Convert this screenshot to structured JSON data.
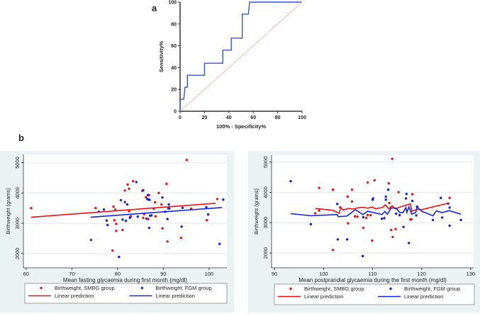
{
  "chart_data": [
    {
      "panel_label": "a",
      "type": "line",
      "title": "",
      "xlabel": "100% - Specificity%",
      "ylabel": "Sensitivity%",
      "xlim": [
        0,
        100
      ],
      "ylim": [
        0,
        100
      ],
      "xticks": [
        0,
        20,
        40,
        60,
        80,
        100
      ],
      "yticks": [
        0,
        20,
        40,
        60,
        80,
        100
      ],
      "grid": false,
      "series": [
        {
          "name": "ROC curve",
          "color": "#3355dd",
          "step": true,
          "points": [
            [
              0,
              0
            ],
            [
              0,
              11
            ],
            [
              3,
              11
            ],
            [
              4,
              22
            ],
            [
              6,
              22
            ],
            [
              6,
              33
            ],
            [
              20,
              33
            ],
            [
              20,
              44
            ],
            [
              35,
              44
            ],
            [
              35,
              56
            ],
            [
              42,
              56
            ],
            [
              42,
              67
            ],
            [
              51,
              67
            ],
            [
              51,
              89
            ],
            [
              56,
              89
            ],
            [
              57,
              100
            ],
            [
              100,
              100
            ]
          ]
        },
        {
          "name": "Reference line",
          "color": "#f4a6a0",
          "points": [
            [
              0,
              0
            ],
            [
              100,
              100
            ]
          ]
        }
      ]
    },
    {
      "panel_label": "b",
      "type": "scatter",
      "xlabel": "Mean fasting glycaemia during first month (mg/dl)",
      "ylabel": "Birthweight (grams)",
      "xlim": [
        59.4,
        103.9
      ],
      "ylim": [
        1530,
        5270
      ],
      "xticks": [
        60,
        70,
        80,
        90,
        100
      ],
      "yticks": [
        2000,
        3000,
        4000,
        5000
      ],
      "grid": true,
      "legend": [
        "Birthweight, SMBG group",
        "Birthweight, FGM group",
        "Linear prediction",
        "Linear prediction"
      ],
      "legend_position": "bottom",
      "series": [
        {
          "name": "Birthweight, SMBG group",
          "kind": "points",
          "color": "#ee1111",
          "points": [
            [
              61.1,
              3500
            ],
            [
              75.2,
              3500
            ],
            [
              79.1,
              3550
            ],
            [
              79.5,
              3450
            ],
            [
              82.5,
              3400
            ],
            [
              79.3,
              3100
            ],
            [
              79.7,
              2980
            ],
            [
              79.7,
              2750
            ],
            [
              81.1,
              2780
            ],
            [
              78.9,
              2100
            ],
            [
              81.6,
              4080
            ],
            [
              82.2,
              4280
            ],
            [
              82.5,
              4140
            ],
            [
              83.4,
              4390
            ],
            [
              82.9,
              3230
            ],
            [
              82.7,
              3200
            ],
            [
              85.4,
              4070
            ],
            [
              85.6,
              3180
            ],
            [
              85.8,
              3300
            ],
            [
              86.2,
              3860
            ],
            [
              86.9,
              3930
            ],
            [
              86.7,
              3140
            ],
            [
              87.9,
              3480
            ],
            [
              88.2,
              3690
            ],
            [
              88.3,
              3230
            ],
            [
              89.0,
              4000
            ],
            [
              89.6,
              3620
            ],
            [
              89.8,
              2830
            ],
            [
              90.7,
              4300
            ],
            [
              90.9,
              2400
            ],
            [
              93.9,
              2520
            ],
            [
              95.1,
              5090
            ],
            [
              96.1,
              3480
            ],
            [
              99.5,
              3100
            ],
            [
              101.8,
              3800
            ]
          ]
        },
        {
          "name": "Birthweight, FGM group",
          "kind": "points",
          "color": "#1122ee",
          "points": [
            [
              74.2,
              2450
            ],
            [
              75.9,
              3380
            ],
            [
              77.0,
              3450
            ],
            [
              77.6,
              3090
            ],
            [
              77.8,
              2940
            ],
            [
              80.3,
              1890
            ],
            [
              80.7,
              3760
            ],
            [
              81.1,
              3120
            ],
            [
              81.6,
              3700
            ],
            [
              81.8,
              3080
            ],
            [
              82.1,
              3620
            ],
            [
              82.7,
              3180
            ],
            [
              84.1,
              4360
            ],
            [
              84.4,
              3220
            ],
            [
              85.6,
              4090
            ],
            [
              86.3,
              3150
            ],
            [
              86.6,
              3930
            ],
            [
              86.5,
              3800
            ],
            [
              86.7,
              3790
            ],
            [
              87.0,
              3770
            ],
            [
              86.9,
              2850
            ],
            [
              87.1,
              3250
            ],
            [
              87.4,
              3260
            ],
            [
              89.8,
              3850
            ],
            [
              90.4,
              3380
            ],
            [
              90.9,
              3140
            ],
            [
              91.1,
              3490
            ],
            [
              91.2,
              3620
            ],
            [
              91.3,
              3490
            ],
            [
              94.0,
              2890
            ],
            [
              94.2,
              3510
            ],
            [
              99.4,
              3530
            ],
            [
              99.8,
              3290
            ],
            [
              102.3,
              2320
            ],
            [
              103.1,
              3780
            ]
          ]
        },
        {
          "name": "Linear prediction",
          "kind": "line",
          "color": "#ee1111",
          "points": [
            [
              61.1,
              3200
            ],
            [
              101.4,
              3660
            ]
          ]
        },
        {
          "name": "Linear prediction",
          "kind": "line",
          "color": "#1122ee",
          "points": [
            [
              74.1,
              3200
            ],
            [
              102.8,
              3520
            ]
          ]
        }
      ]
    },
    {
      "type": "scatter",
      "xlabel": "Mean postprandial glycaemia during the first month (mg/dl)",
      "ylabel": "Birthweight (grams)",
      "xlim": [
        89.4,
        130.6
      ],
      "ylim": [
        1510,
        5230
      ],
      "xticks": [
        90,
        100,
        110,
        120,
        130
      ],
      "yticks": [
        2000,
        3000,
        4000,
        5000
      ],
      "grid": true,
      "legend": [
        "Birthweight, SMBG group",
        "Birthweight, FGM group",
        "Linear prediction",
        "Linear prediction"
      ],
      "legend_position": "bottom",
      "series": [
        {
          "name": "Birthweight, SMBG group",
          "kind": "points",
          "color": "#ee1111",
          "points": [
            [
              98.3,
              3310
            ],
            [
              99.1,
              4150
            ],
            [
              99.1,
              3400
            ],
            [
              101.9,
              4090
            ],
            [
              101.9,
              2100
            ],
            [
              103.4,
              3510
            ],
            [
              104.9,
              3860
            ],
            [
              105.0,
              2980
            ],
            [
              105.8,
              4090
            ],
            [
              105.8,
              3700
            ],
            [
              106.4,
              3210
            ],
            [
              106.9,
              3200
            ],
            [
              108.1,
              2830
            ],
            [
              108.7,
              3160
            ],
            [
              109.0,
              4330
            ],
            [
              109.0,
              3250
            ],
            [
              109.6,
              3250
            ],
            [
              109.9,
              2410
            ],
            [
              110.4,
              4400
            ],
            [
              113.3,
              4300
            ],
            [
              113.4,
              3650
            ],
            [
              114.0,
              5110
            ],
            [
              113.8,
              2760
            ],
            [
              114.1,
              2530
            ],
            [
              114.7,
              2790
            ],
            [
              115.3,
              4010
            ],
            [
              117.7,
              3110
            ],
            [
              117.9,
              3110
            ],
            [
              118.1,
              3940
            ],
            [
              119.1,
              3520
            ],
            [
              125.7,
              3820
            ]
          ]
        },
        {
          "name": "Birthweight, FGM group",
          "kind": "points",
          "color": "#1122ee",
          "points": [
            [
              93.3,
              4370
            ],
            [
              97.4,
              2950
            ],
            [
              102.8,
              3620
            ],
            [
              102.9,
              2450
            ],
            [
              104.8,
              2450
            ],
            [
              108.1,
              3180
            ],
            [
              108.0,
              1900
            ],
            [
              110.0,
              3760
            ],
            [
              110.1,
              3800
            ],
            [
              111.9,
              3130
            ],
            [
              112.4,
              3150
            ],
            [
              112.7,
              3860
            ],
            [
              112.7,
              3760
            ],
            [
              113.2,
              4090
            ],
            [
              114.8,
              3300
            ],
            [
              115.5,
              3250
            ],
            [
              116.3,
              2860
            ],
            [
              116.8,
              3800
            ],
            [
              116.9,
              3950
            ],
            [
              117.4,
              2330
            ],
            [
              118.1,
              3720
            ],
            [
              118.9,
              3240
            ],
            [
              119.1,
              3530
            ],
            [
              122.3,
              3090
            ],
            [
              123.9,
              3820
            ],
            [
              124.2,
              3170
            ],
            [
              125.4,
              3630
            ],
            [
              125.7,
              3500
            ],
            [
              125.7,
              2900
            ],
            [
              128.0,
              3090
            ]
          ]
        },
        {
          "name": "Linear prediction",
          "kind": "line",
          "color": "#ee1111",
          "points": [
            [
              98.3,
              3470
            ],
            [
              101.9,
              3410
            ],
            [
              103.2,
              3310
            ],
            [
              103.5,
              3510
            ],
            [
              104,
              3420
            ],
            [
              105,
              3470
            ],
            [
              106,
              3450
            ],
            [
              107,
              3490
            ],
            [
              108,
              3510
            ],
            [
              109,
              3480
            ],
            [
              110,
              3520
            ],
            [
              110.5,
              3460
            ],
            [
              112,
              3500
            ],
            [
              112.6,
              3590
            ],
            [
              113.3,
              3460
            ],
            [
              114,
              3560
            ],
            [
              114.6,
              3460
            ],
            [
              116,
              3540
            ],
            [
              117.7,
              3620
            ],
            [
              118,
              3380
            ],
            [
              119,
              3440
            ],
            [
              120,
              3430
            ],
            [
              125.6,
              3650
            ]
          ]
        },
        {
          "name": "Linear prediction",
          "kind": "line",
          "color": "#1122ee",
          "points": [
            [
              93.3,
              3300
            ],
            [
              97.4,
              3230
            ],
            [
              102.8,
              3270
            ],
            [
              103,
              3200
            ],
            [
              104.8,
              3220
            ],
            [
              106.5,
              3430
            ],
            [
              108,
              3270
            ],
            [
              109,
              3380
            ],
            [
              111.9,
              3270
            ],
            [
              112.5,
              3370
            ],
            [
              113,
              3280
            ],
            [
              113.8,
              3490
            ],
            [
              114.8,
              3480
            ],
            [
              115.5,
              3340
            ],
            [
              116.2,
              3330
            ],
            [
              116.8,
              3500
            ],
            [
              117,
              3340
            ],
            [
              117.4,
              3520
            ],
            [
              118,
              3280
            ],
            [
              118.8,
              3340
            ],
            [
              119.1,
              3520
            ],
            [
              120,
              3380
            ],
            [
              122.3,
              3230
            ],
            [
              123,
              3390
            ],
            [
              124.2,
              3330
            ],
            [
              125.6,
              3400
            ],
            [
              128,
              3280
            ]
          ]
        }
      ]
    }
  ]
}
